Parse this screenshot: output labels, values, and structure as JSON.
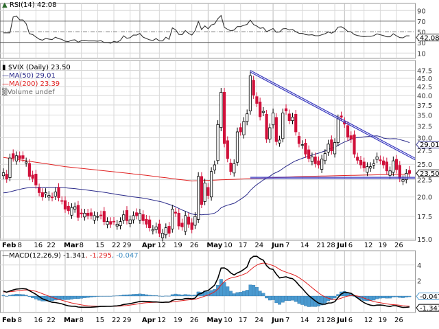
{
  "chart_data": {
    "type": "candlestick",
    "symbol_legend": "$VIX (Daily) 23.50",
    "ma50_legend": "MA(50) 29.01",
    "ma200_legend": "MA(200) 23.39",
    "volume_legend": "Volume undef",
    "rsi_legend": "RSI(14) 42.08",
    "macd_legend_main": "MACD(12,26,9) -1.341",
    "macd_legend_signal": ", -1.295",
    "macd_legend_hist": ", -0.047",
    "price_scale": "log",
    "price_ylim": [
      15,
      48.5
    ],
    "price_ticks": [
      "47.5",
      "45.0",
      "42.5",
      "40.0",
      "37.5",
      "35.0",
      "32.5",
      "30.0",
      "27.5",
      "25.0",
      "22.5",
      "20.0",
      "17.5",
      "15.0"
    ],
    "rsi_ticks": [
      "90",
      "70",
      "50",
      "30",
      "10"
    ],
    "macd_ticks": [
      "4",
      "2"
    ],
    "value_tags": {
      "ma50": "29.01",
      "close": "23.50",
      "rsi": "42.08",
      "macd_hist": "-0.047",
      "macd": "-1.341"
    },
    "x_ticks": [
      {
        "label": "Feb",
        "date": "Feb 1",
        "month": true
      },
      {
        "label": "8",
        "date": "Feb 8"
      },
      {
        "label": "16",
        "date": "Feb 16"
      },
      {
        "label": "22",
        "date": "Feb 22"
      },
      {
        "label": "Mar",
        "date": "Mar 1",
        "month": true
      },
      {
        "label": "8",
        "date": "Mar 8"
      },
      {
        "label": "15",
        "date": "Mar 15"
      },
      {
        "label": "22",
        "date": "Mar 22"
      },
      {
        "label": "29",
        "date": "Mar 29"
      },
      {
        "label": "Apr",
        "date": "Apr 1",
        "month": true
      },
      {
        "label": "12",
        "date": "Apr 12"
      },
      {
        "label": "19",
        "date": "Apr 19"
      },
      {
        "label": "26",
        "date": "Apr 26"
      },
      {
        "label": "May",
        "date": "May 3",
        "month": true
      },
      {
        "label": "10",
        "date": "May 10"
      },
      {
        "label": "17",
        "date": "May 17"
      },
      {
        "label": "24",
        "date": "May 24"
      },
      {
        "label": "Jun",
        "date": "Jun 1",
        "month": true
      },
      {
        "label": "7",
        "date": "Jun 7"
      },
      {
        "label": "14",
        "date": "Jun 14"
      },
      {
        "label": "21",
        "date": "Jun 21"
      },
      {
        "label": "28",
        "date": "Jun 28"
      },
      {
        "label": "Jul",
        "date": "Jul 1",
        "month": true
      },
      {
        "label": "6",
        "date": "Jul 6"
      },
      {
        "label": "12",
        "date": "Jul 12"
      },
      {
        "label": "19",
        "date": "Jul 19"
      },
      {
        "label": "26",
        "date": "Jul 26"
      }
    ],
    "dates": [
      "Feb 1",
      "Feb 2",
      "Feb 3",
      "Feb 4",
      "Feb 5",
      "Feb 8",
      "Feb 9",
      "Feb 10",
      "Feb 11",
      "Feb 12",
      "Feb 16",
      "Feb 17",
      "Feb 18",
      "Feb 19",
      "Feb 22",
      "Feb 23",
      "Feb 24",
      "Feb 25",
      "Feb 26",
      "Mar 1",
      "Mar 2",
      "Mar 3",
      "Mar 4",
      "Mar 5",
      "Mar 8",
      "Mar 9",
      "Mar 10",
      "Mar 11",
      "Mar 12",
      "Mar 15",
      "Mar 16",
      "Mar 17",
      "Mar 18",
      "Mar 19",
      "Mar 22",
      "Mar 23",
      "Mar 24",
      "Mar 25",
      "Mar 26",
      "Mar 29",
      "Mar 30",
      "Mar 31",
      "Apr 1",
      "Apr 5",
      "Apr 6",
      "Apr 7",
      "Apr 8",
      "Apr 9",
      "Apr 12",
      "Apr 13",
      "Apr 14",
      "Apr 15",
      "Apr 16",
      "Apr 19",
      "Apr 20",
      "Apr 21",
      "Apr 22",
      "Apr 23",
      "Apr 26",
      "Apr 27",
      "Apr 28",
      "Apr 29",
      "Apr 30",
      "May 3",
      "May 4",
      "May 5",
      "May 6",
      "May 7",
      "May 10",
      "May 11",
      "May 12",
      "May 13",
      "May 14",
      "May 17",
      "May 18",
      "May 19",
      "May 20",
      "May 21",
      "May 24",
      "May 25",
      "May 26",
      "May 27",
      "May 28",
      "Jun 1",
      "Jun 2",
      "Jun 3",
      "Jun 4",
      "Jun 7",
      "Jun 8",
      "Jun 9",
      "Jun 10",
      "Jun 11",
      "Jun 14",
      "Jun 15",
      "Jun 16",
      "Jun 17",
      "Jun 18",
      "Jun 21",
      "Jun 22",
      "Jun 23",
      "Jun 24",
      "Jun 25",
      "Jun 28",
      "Jun 29",
      "Jun 30",
      "Jul 1",
      "Jul 2",
      "Jul 6",
      "Jul 7",
      "Jul 8",
      "Jul 9",
      "Jul 12",
      "Jul 13",
      "Jul 14",
      "Jul 15",
      "Jul 16",
      "Jul 19",
      "Jul 20",
      "Jul 21",
      "Jul 22",
      "Jul 23",
      "Jul 26",
      "Jul 27",
      "Jul 28",
      "Jul 29",
      "Jul 30"
    ],
    "close": [
      23.6,
      22.6,
      26.1,
      26.1,
      26.5,
      26.0,
      26.0,
      25.4,
      23.0,
      22.7,
      21.7,
      20.6,
      20.0,
      20.6,
      20.2,
      19.9,
      20.7,
      19.9,
      19.5,
      18.4,
      18.2,
      18.6,
      18.7,
      17.4,
      17.8,
      17.9,
      17.6,
      17.6,
      17.6,
      17.5,
      17.6,
      16.9,
      16.9,
      16.6,
      16.9,
      16.6,
      16.9,
      17.7,
      17.0,
      17.1,
      17.6,
      17.6,
      17.9,
      17.0,
      16.6,
      16.2,
      16.0,
      16.3,
      15.6,
      15.6,
      16.2,
      15.6,
      18.4,
      17.9,
      16.4,
      16.3,
      17.6,
      16.6,
      16.0,
      17.5,
      23.0,
      19.0,
      22.0,
      20.2,
      23.8,
      24.9,
      32.8,
      40.9,
      28.8,
      26.0,
      23.8,
      25.1,
      31.2,
      31.2,
      33.5,
      35.3,
      45.8,
      40.1,
      37.9,
      34.6,
      35.9,
      29.7,
      32.1,
      35.5,
      29.2,
      29.5,
      35.5,
      36.0,
      33.7,
      34.5,
      31.2,
      28.8,
      28.6,
      26.8,
      26.0,
      26.3,
      25.1,
      24.9,
      25.9,
      26.9,
      28.7,
      27.4,
      29.0,
      34.1,
      34.5,
      32.9,
      30.1,
      29.7,
      26.8,
      25.7,
      24.9,
      24.4,
      24.6,
      24.6,
      25.1,
      26.3,
      25.6,
      24.9,
      23.9,
      23.9,
      25.6,
      24.1,
      22.7,
      22.5,
      23.5,
      23.5
    ],
    "ma200": [
      [
        "Feb 1",
        26.2
      ],
      [
        "Mar 1",
        24.6
      ],
      [
        "Apr 1",
        23.3
      ],
      [
        "Apr 26",
        22.3
      ],
      [
        "May 17",
        22.6
      ],
      [
        "Jun 14",
        23.0
      ],
      [
        "Jul 30",
        23.39
      ]
    ],
    "trendlines": {
      "resistance": [
        [
          "May 20",
          47.5
        ],
        [
          "Jul 30",
          26.6
        ]
      ],
      "support": [
        [
          "May 20",
          22.8
        ],
        [
          "Jul 30",
          22.8
        ]
      ]
    },
    "colors": {
      "up": "#000000",
      "down": "#d0103a",
      "ma50": "#2a2a8a",
      "ma200": "#e02020",
      "trendline": "#3a3ac0",
      "macd": "#000000",
      "signal": "#e02020",
      "hist": "#4a9ad0",
      "grid": "#d8d8d8"
    },
    "grid": true
  }
}
